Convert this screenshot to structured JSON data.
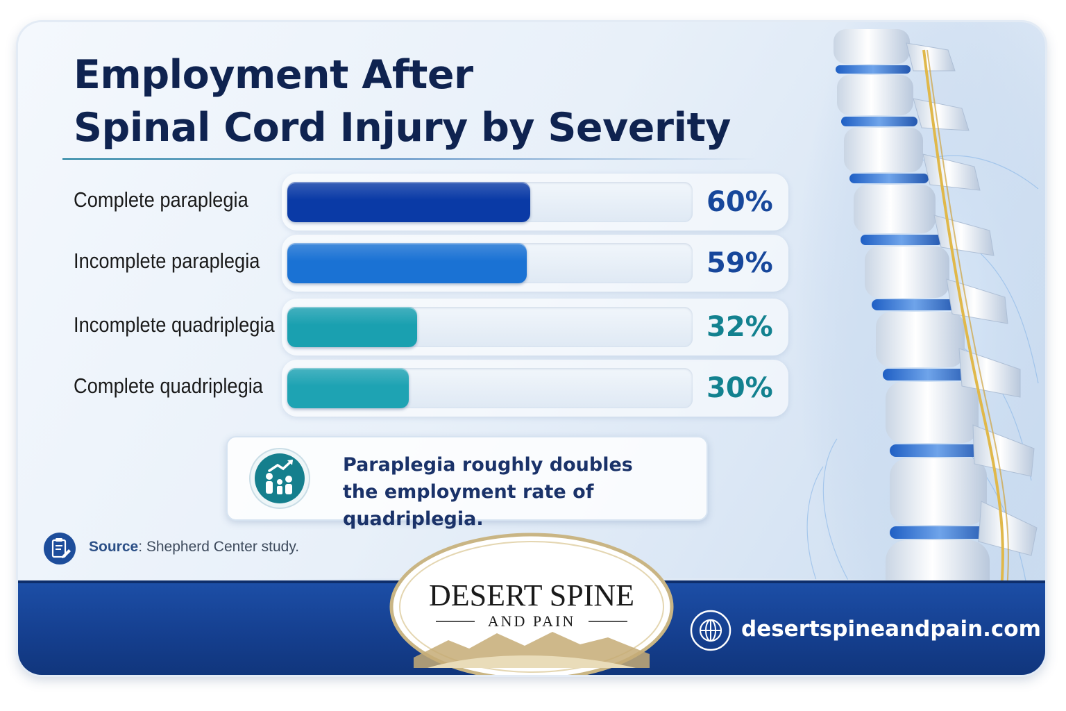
{
  "title_lines": [
    "Employment After",
    "Spinal Cord Injury by Severity"
  ],
  "chart_data": {
    "type": "bar",
    "orientation": "horizontal",
    "title": "Employment After Spinal Cord Injury by Severity",
    "categories": [
      "Complete paraplegia",
      "Incomplete paraplegia",
      "Incomplete quadriplegia",
      "Complete quadriplegia"
    ],
    "values": [
      60,
      59,
      32,
      30
    ],
    "value_labels": [
      "60%",
      "59%",
      "32%",
      "30%"
    ],
    "xlim": [
      0,
      100
    ],
    "grid": false,
    "bar_colors": [
      "#0a3aa6",
      "#1a72d4",
      "#1aa0b0",
      "#1ea3b3"
    ],
    "label_colors": [
      "#17479b",
      "#17479b",
      "#12818f",
      "#12818f"
    ]
  },
  "callout": {
    "lines": [
      "Paraplegia roughly doubles",
      "the employment rate of quadriplegia."
    ],
    "icon": "people-growth-icon"
  },
  "source": {
    "key": "Source",
    "text": ": Shepherd Center study.",
    "icon": "clipboard-icon"
  },
  "brand": {
    "name": "DESERT SPINE",
    "sub": "AND PAIN",
    "website": "desertspineandpain.com",
    "website_icon": "globe-icon"
  }
}
